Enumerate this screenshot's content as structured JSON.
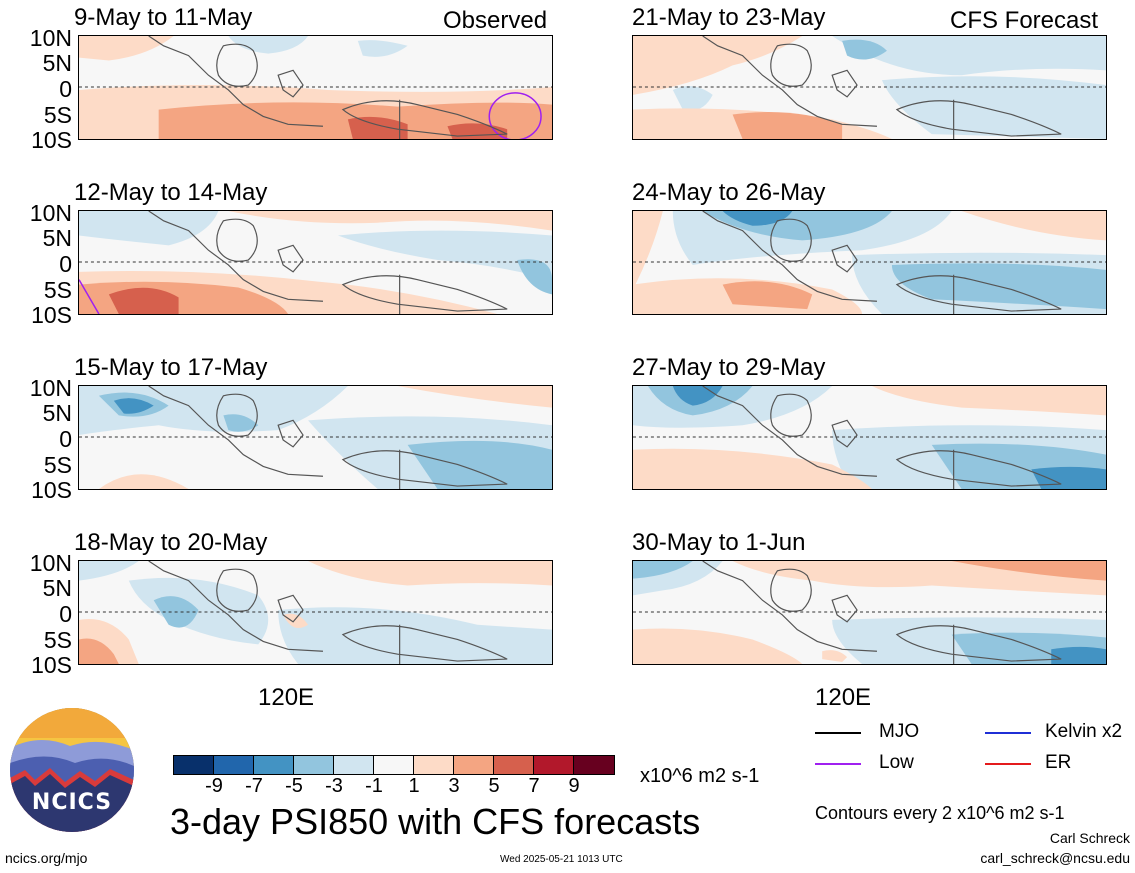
{
  "labels": {
    "observed": "Observed",
    "forecast": "CFS Forecast",
    "lat_ticks": [
      "10N",
      "5N",
      "0",
      "5S",
      "10S"
    ],
    "xtick": "120E"
  },
  "panels": [
    {
      "title": "9-May to 11-May",
      "col": "observed"
    },
    {
      "title": "12-May to 14-May",
      "col": "observed"
    },
    {
      "title": "15-May to 17-May",
      "col": "observed"
    },
    {
      "title": "18-May to 20-May",
      "col": "observed"
    },
    {
      "title": "21-May to 23-May",
      "col": "forecast"
    },
    {
      "title": "24-May to 26-May",
      "col": "forecast"
    },
    {
      "title": "27-May to 29-May",
      "col": "forecast"
    },
    {
      "title": "30-May to 1-Jun",
      "col": "forecast"
    }
  ],
  "colorbar": {
    "ticks": [
      "-9",
      "-7",
      "-5",
      "-3",
      "-1",
      "1",
      "3",
      "5",
      "7",
      "9"
    ],
    "colors": [
      "#08306b",
      "#2166ac",
      "#4393c3",
      "#92c5de",
      "#d1e5f0",
      "#f7f7f7",
      "#fddbc7",
      "#f4a582",
      "#d6604d",
      "#b2182b",
      "#67001f"
    ],
    "units": "x10^6 m2 s-1"
  },
  "legend": {
    "mjo": {
      "label": "MJO",
      "color": "#000000"
    },
    "kelvin": {
      "label": "Kelvin x2",
      "color": "#1f2fd6"
    },
    "low": {
      "label": "Low",
      "color": "#a020f0"
    },
    "er": {
      "label": "ER",
      "color": "#e41a1c"
    }
  },
  "main_title": "3-day PSI850 with CFS forecasts",
  "contour_note": "Contours every 2 x10^6 m2 s-1",
  "footer": {
    "url": "ncics.org/mjo",
    "timestamp": "Wed 2025-05-21 1013 UTC",
    "author": "Carl Schreck",
    "email": "carl_schreck@ncsu.edu"
  },
  "logo": {
    "text": "NCICS"
  }
}
